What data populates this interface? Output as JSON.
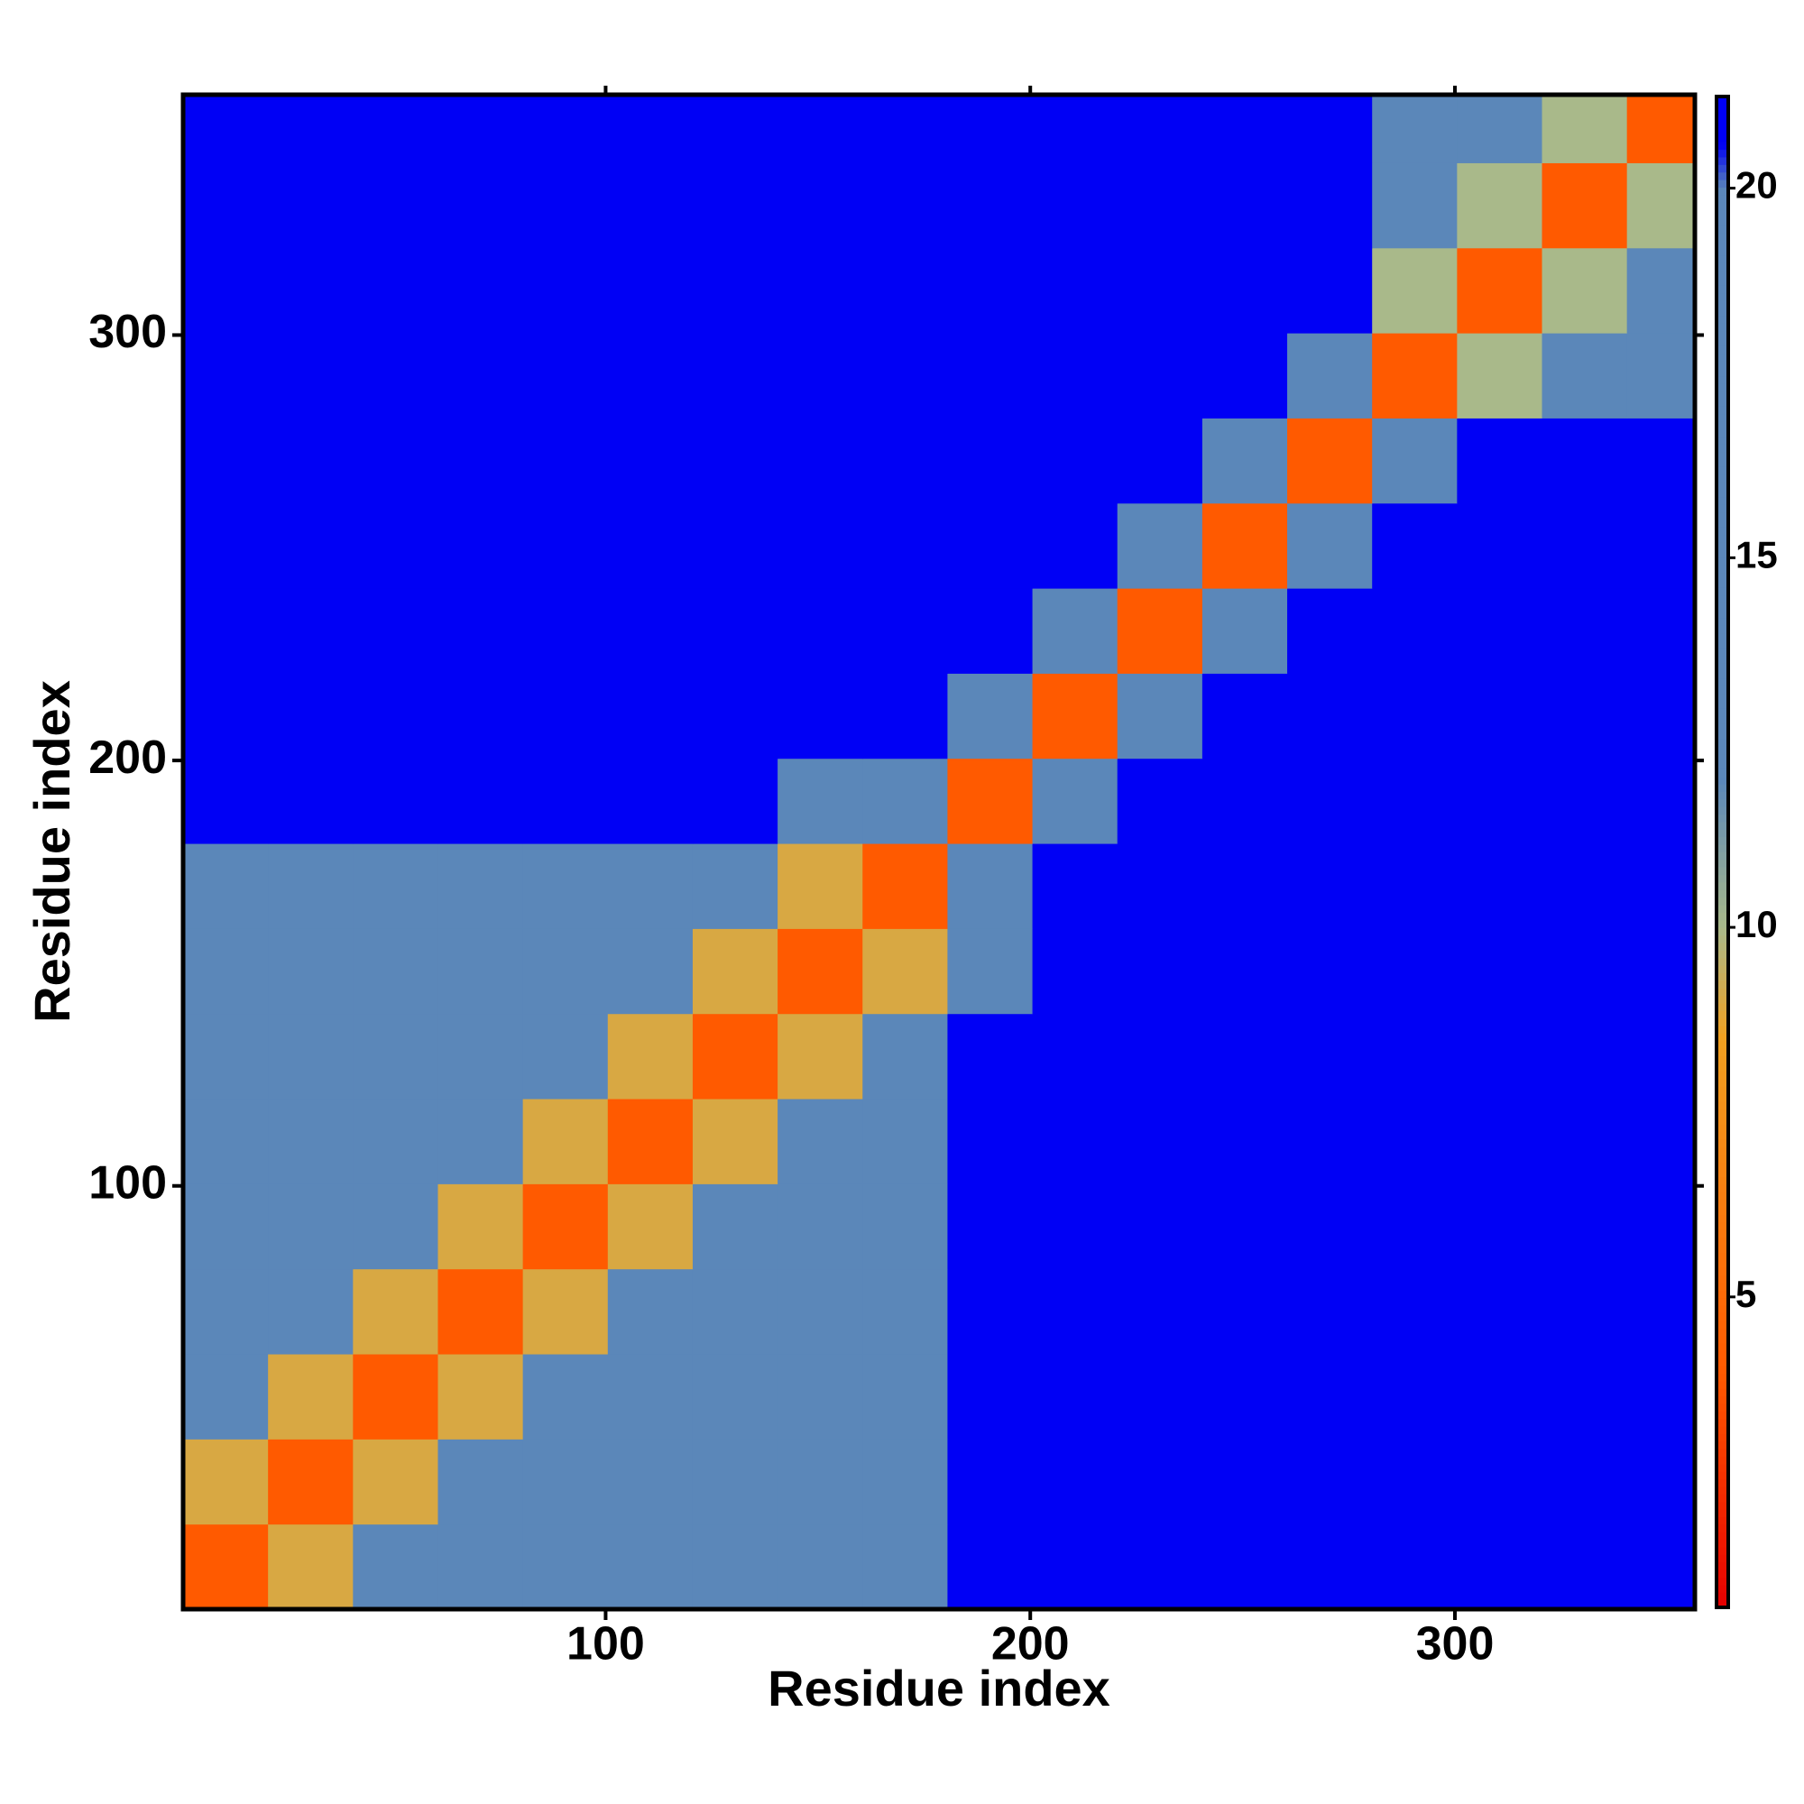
{
  "chart_data": {
    "type": "heatmap",
    "xlabel": "Residue index",
    "ylabel": "Residue index",
    "bins": [
      0.5,
      20.5,
      40.5,
      60.5,
      80.5,
      100.5,
      120.5,
      140.5,
      160.5,
      180.5,
      200.5,
      220.5,
      240.5,
      260.5,
      280.5,
      300.5,
      320.5,
      340.5,
      356.5
    ],
    "values": [
      [
        4,
        9,
        12,
        13,
        14,
        15,
        15,
        16,
        17,
        21,
        21,
        21,
        21,
        21,
        21,
        21,
        21,
        21
      ],
      [
        9,
        4,
        9,
        12,
        13,
        15,
        15,
        16,
        17,
        21,
        21,
        21,
        21,
        21,
        21,
        21,
        21,
        21
      ],
      [
        12,
        9,
        4,
        9,
        12,
        15,
        15,
        15,
        16,
        21,
        21,
        21,
        21,
        21,
        21,
        21,
        21,
        21
      ],
      [
        13,
        12,
        9,
        4,
        9,
        14,
        15,
        15,
        16,
        21,
        21,
        21,
        21,
        21,
        21,
        21,
        21,
        21
      ],
      [
        14,
        13,
        12,
        9,
        4,
        9,
        13,
        14,
        15,
        21,
        21,
        21,
        21,
        21,
        21,
        21,
        21,
        21
      ],
      [
        15,
        15,
        15,
        14,
        9,
        4,
        9,
        12,
        13,
        21,
        21,
        21,
        21,
        21,
        21,
        21,
        21,
        21
      ],
      [
        15,
        15,
        15,
        15,
        13,
        9,
        4,
        9,
        12,
        21,
        21,
        21,
        21,
        21,
        21,
        21,
        21,
        21
      ],
      [
        16,
        16,
        15,
        15,
        14,
        12,
        9,
        4,
        9,
        15,
        21,
        21,
        21,
        21,
        21,
        21,
        21,
        21
      ],
      [
        17,
        17,
        16,
        16,
        15,
        13,
        12,
        9,
        4,
        12,
        21,
        21,
        21,
        21,
        21,
        21,
        21,
        21
      ],
      [
        21,
        21,
        21,
        21,
        21,
        21,
        21,
        15,
        12,
        4,
        14,
        21,
        21,
        21,
        21,
        21,
        21,
        21
      ],
      [
        21,
        21,
        21,
        21,
        21,
        21,
        21,
        21,
        21,
        14,
        4,
        14,
        21,
        21,
        21,
        21,
        21,
        21
      ],
      [
        21,
        21,
        21,
        21,
        21,
        21,
        21,
        21,
        21,
        21,
        14,
        4,
        14,
        21,
        21,
        21,
        21,
        21
      ],
      [
        21,
        21,
        21,
        21,
        21,
        21,
        21,
        21,
        21,
        21,
        21,
        14,
        4,
        14,
        21,
        21,
        21,
        21
      ],
      [
        21,
        21,
        21,
        21,
        21,
        21,
        21,
        21,
        21,
        21,
        21,
        21,
        14,
        4,
        13,
        21,
        21,
        21
      ],
      [
        21,
        21,
        21,
        21,
        21,
        21,
        21,
        21,
        21,
        21,
        21,
        21,
        21,
        13,
        4,
        10,
        12,
        13
      ],
      [
        21,
        21,
        21,
        21,
        21,
        21,
        21,
        21,
        21,
        21,
        21,
        21,
        21,
        21,
        10,
        4,
        10,
        12
      ],
      [
        21,
        21,
        21,
        21,
        21,
        21,
        21,
        21,
        21,
        21,
        21,
        21,
        21,
        21,
        12,
        10,
        4,
        10
      ],
      [
        21,
        21,
        21,
        21,
        21,
        21,
        21,
        21,
        21,
        21,
        21,
        21,
        21,
        21,
        13,
        12,
        10,
        4
      ]
    ],
    "xlim": [
      0.5,
      356.5
    ],
    "ylim": [
      0.5,
      356.5
    ],
    "xticks": [
      100,
      200,
      300
    ],
    "yticks": [
      100,
      200,
      300
    ],
    "clim": [
      0.8,
      21.24
    ],
    "cticks": [
      5,
      10,
      15,
      20
    ],
    "colorscale": [
      {
        "value": 0.8,
        "color": "#e60000"
      },
      {
        "value": 4,
        "color": "#ff5a00"
      },
      {
        "value": 8.5,
        "color": "#f0a020"
      },
      {
        "value": 10,
        "color": "#a9b98a"
      },
      {
        "value": 12,
        "color": "#5b87b9"
      },
      {
        "value": 20,
        "color": "#5b87b9"
      },
      {
        "value": 20.6,
        "color": "#0000f5"
      },
      {
        "value": 21.24,
        "color": "#0000f5"
      }
    ]
  }
}
